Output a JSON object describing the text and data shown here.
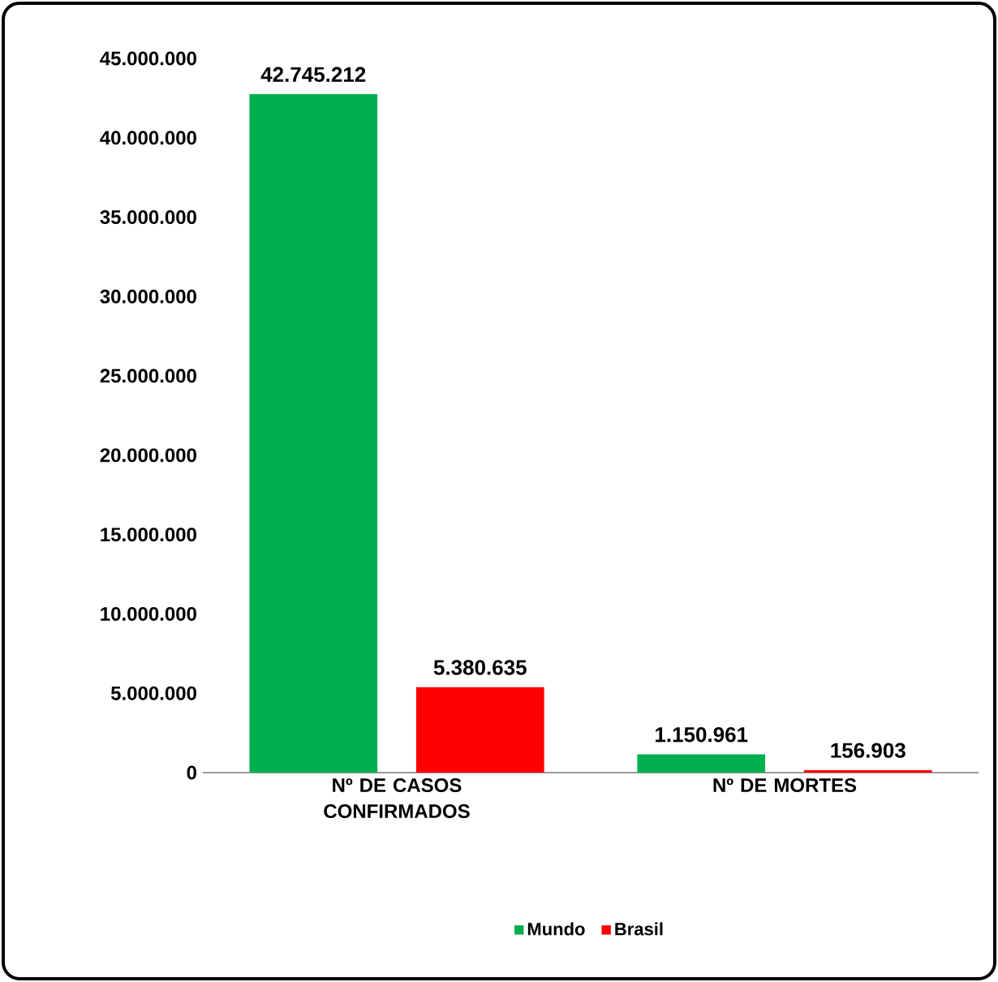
{
  "chart_data": {
    "type": "bar",
    "categories": [
      "Nº DE CASOS CONFIRMADOS",
      "Nº DE MORTES"
    ],
    "series": [
      {
        "name": "Mundo",
        "color": "#00b050",
        "values": [
          42745212,
          1150961
        ],
        "value_labels": [
          "42.745.212",
          "1.150.961"
        ]
      },
      {
        "name": "Brasil",
        "color": "#ff0000",
        "values": [
          5380635,
          156903
        ],
        "value_labels": [
          "5.380.635",
          "156.903"
        ]
      }
    ],
    "ylim": [
      0,
      45000000
    ],
    "yticks": [
      0,
      {
        "value": 5000000,
        "label": "5.000.000"
      },
      {
        "value": 10000000,
        "label": "10.000.000"
      },
      {
        "value": 15000000,
        "label": "15.000.000"
      },
      {
        "value": 20000000,
        "label": "20.000.000"
      },
      {
        "value": 25000000,
        "label": "25.000.000"
      },
      {
        "value": 30000000,
        "label": "30.000.000"
      },
      {
        "value": 35000000,
        "label": "35.000.000"
      },
      {
        "value": 40000000,
        "label": "40.000.000"
      },
      {
        "value": 45000000,
        "label": "45.000.000"
      }
    ],
    "grid": false,
    "legend": "bottom"
  }
}
